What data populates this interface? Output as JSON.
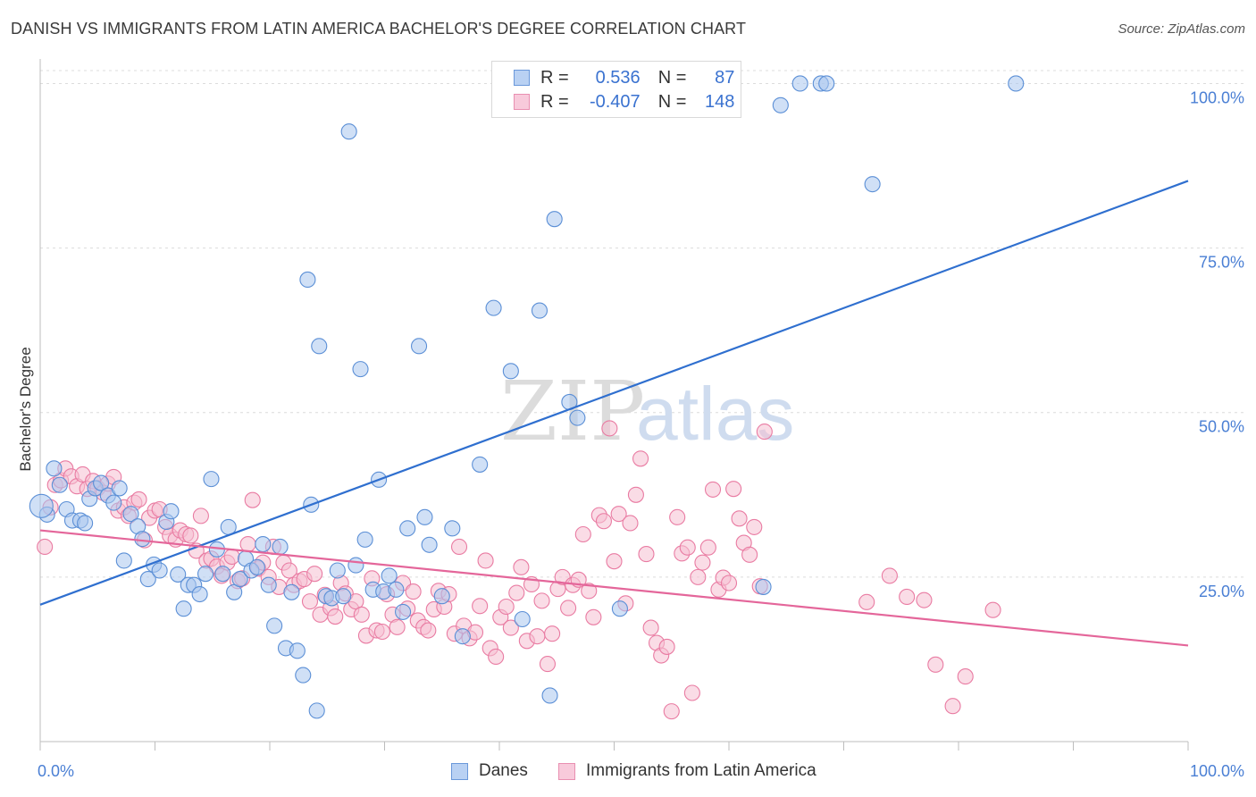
{
  "title": "DANISH VS IMMIGRANTS FROM LATIN AMERICA BACHELOR'S DEGREE CORRELATION CHART",
  "source": "Source: ZipAtlas.com",
  "watermark": "ZIPatlas",
  "colors": {
    "blue": "#5b8fd6",
    "blue_fill": "#a9c6ee",
    "blue_line": "#2f6fcf",
    "pink": "#e97ba2",
    "pink_fill": "#f6bfd1",
    "pink_line": "#e4669a",
    "tick": "#4a7fd4"
  },
  "legend": {
    "rows": [
      {
        "r_label": "R =",
        "r_value": "0.536",
        "n_label": "N =",
        "n_value": "87"
      },
      {
        "r_label": "R =",
        "r_value": "-0.407",
        "n_label": "N =",
        "n_value": "148"
      }
    ]
  },
  "bottom_legend": {
    "danes": "Danes",
    "immigrants": "Immigrants from Latin America"
  },
  "chart_data": {
    "type": "scatter",
    "ylabel": "Bachelor's Degree",
    "xlim": [
      0,
      100
    ],
    "ylim": [
      0,
      104
    ],
    "x_tick_labels": [
      "0.0%",
      "100.0%"
    ],
    "y_ticks": [
      25,
      50,
      75,
      100
    ],
    "y_tick_labels": [
      "25.0%",
      "50.0%",
      "75.0%",
      "100.0%"
    ],
    "grid": true,
    "series": [
      {
        "name": "Danes",
        "r": 0.536,
        "n": 87,
        "trend": [
          [
            0,
            20.8
          ],
          [
            100,
            85.2
          ]
        ],
        "points": [
          [
            0.6,
            34.5
          ],
          [
            1.2,
            41.5
          ],
          [
            1.7,
            39.0
          ],
          [
            2.3,
            35.3
          ],
          [
            2.8,
            33.6
          ],
          [
            3.5,
            33.6
          ],
          [
            3.9,
            33.2
          ],
          [
            4.3,
            36.9
          ],
          [
            4.8,
            38.5
          ],
          [
            5.3,
            39.3
          ],
          [
            5.9,
            37.4
          ],
          [
            6.4,
            36.3
          ],
          [
            6.9,
            38.5
          ],
          [
            7.3,
            27.5
          ],
          [
            7.9,
            34.6
          ],
          [
            8.5,
            32.7
          ],
          [
            8.9,
            30.8
          ],
          [
            9.4,
            24.7
          ],
          [
            9.9,
            26.9
          ],
          [
            10.4,
            26.0
          ],
          [
            11.0,
            33.4
          ],
          [
            11.4,
            35.0
          ],
          [
            12.0,
            25.4
          ],
          [
            12.5,
            20.2
          ],
          [
            12.9,
            23.8
          ],
          [
            13.4,
            23.8
          ],
          [
            13.9,
            22.4
          ],
          [
            14.4,
            25.5
          ],
          [
            14.9,
            39.9
          ],
          [
            15.4,
            29.2
          ],
          [
            15.9,
            25.5
          ],
          [
            16.4,
            32.6
          ],
          [
            16.9,
            22.7
          ],
          [
            17.4,
            24.7
          ],
          [
            17.9,
            27.8
          ],
          [
            18.4,
            26.0
          ],
          [
            18.9,
            26.5
          ],
          [
            19.4,
            30.0
          ],
          [
            19.9,
            23.8
          ],
          [
            20.4,
            17.6
          ],
          [
            20.9,
            29.6
          ],
          [
            21.4,
            14.2
          ],
          [
            21.9,
            22.7
          ],
          [
            22.4,
            13.8
          ],
          [
            22.9,
            10.1
          ],
          [
            23.3,
            70.2
          ],
          [
            23.6,
            36.0
          ],
          [
            24.1,
            4.7
          ],
          [
            24.3,
            60.1
          ],
          [
            24.9,
            22.1
          ],
          [
            25.4,
            21.8
          ],
          [
            25.9,
            26.0
          ],
          [
            26.4,
            22.1
          ],
          [
            26.9,
            92.7
          ],
          [
            27.5,
            26.8
          ],
          [
            27.9,
            56.6
          ],
          [
            28.3,
            30.7
          ],
          [
            29.0,
            23.1
          ],
          [
            29.5,
            39.8
          ],
          [
            29.9,
            22.8
          ],
          [
            30.4,
            25.2
          ],
          [
            31.0,
            23.1
          ],
          [
            31.6,
            19.7
          ],
          [
            32.0,
            32.4
          ],
          [
            33.0,
            60.1
          ],
          [
            33.5,
            34.1
          ],
          [
            33.9,
            29.9
          ],
          [
            35.0,
            22.1
          ],
          [
            35.9,
            32.4
          ],
          [
            36.8,
            16.0
          ],
          [
            38.3,
            42.1
          ],
          [
            39.5,
            65.9
          ],
          [
            41.0,
            56.3
          ],
          [
            42.0,
            18.6
          ],
          [
            43.5,
            65.5
          ],
          [
            44.4,
            7.0
          ],
          [
            44.8,
            79.4
          ],
          [
            46.1,
            51.6
          ],
          [
            46.8,
            49.2
          ],
          [
            50.5,
            20.2
          ],
          [
            63.0,
            23.5
          ],
          [
            64.5,
            96.7
          ],
          [
            66.2,
            100.0
          ],
          [
            68.0,
            100.0
          ],
          [
            68.5,
            100.0
          ],
          [
            72.5,
            84.7
          ],
          [
            85.0,
            100.0
          ]
        ]
      },
      {
        "name": "Immigrants from Latin America",
        "r": -0.407,
        "n": 148,
        "trend": [
          [
            0,
            32.1
          ],
          [
            100,
            14.6
          ]
        ],
        "points": [
          [
            0.4,
            29.6
          ],
          [
            0.9,
            35.6
          ],
          [
            1.3,
            39.0
          ],
          [
            1.8,
            39.7
          ],
          [
            2.2,
            41.5
          ],
          [
            2.7,
            40.3
          ],
          [
            3.2,
            38.8
          ],
          [
            3.7,
            40.6
          ],
          [
            4.1,
            38.4
          ],
          [
            4.6,
            39.6
          ],
          [
            5.0,
            38.5
          ],
          [
            5.5,
            37.8
          ],
          [
            5.9,
            39.2
          ],
          [
            6.4,
            40.2
          ],
          [
            6.8,
            35.1
          ],
          [
            7.3,
            35.6
          ],
          [
            7.7,
            34.3
          ],
          [
            8.2,
            36.3
          ],
          [
            8.6,
            36.8
          ],
          [
            9.1,
            30.6
          ],
          [
            9.5,
            34.0
          ],
          [
            10.0,
            35.1
          ],
          [
            10.4,
            35.3
          ],
          [
            10.9,
            32.6
          ],
          [
            11.3,
            31.3
          ],
          [
            11.8,
            30.7
          ],
          [
            12.2,
            32.1
          ],
          [
            12.7,
            31.5
          ],
          [
            13.1,
            31.3
          ],
          [
            13.6,
            29.0
          ],
          [
            14.0,
            34.3
          ],
          [
            14.5,
            27.5
          ],
          [
            14.9,
            27.8
          ],
          [
            15.4,
            26.6
          ],
          [
            15.8,
            25.2
          ],
          [
            16.3,
            27.2
          ],
          [
            16.7,
            28.1
          ],
          [
            17.2,
            24.4
          ],
          [
            17.6,
            24.8
          ],
          [
            18.1,
            30.0
          ],
          [
            18.5,
            36.7
          ],
          [
            19.0,
            26.3
          ],
          [
            19.4,
            27.2
          ],
          [
            19.9,
            25.0
          ],
          [
            20.3,
            29.6
          ],
          [
            20.8,
            23.5
          ],
          [
            21.2,
            27.2
          ],
          [
            21.7,
            26.0
          ],
          [
            22.1,
            23.8
          ],
          [
            22.6,
            24.4
          ],
          [
            23.0,
            24.7
          ],
          [
            23.5,
            21.3
          ],
          [
            23.9,
            25.5
          ],
          [
            24.4,
            19.3
          ],
          [
            24.8,
            22.3
          ],
          [
            25.3,
            20.3
          ],
          [
            25.7,
            19.0
          ],
          [
            26.2,
            24.1
          ],
          [
            26.6,
            22.5
          ],
          [
            27.1,
            20.1
          ],
          [
            27.5,
            21.3
          ],
          [
            28.0,
            19.3
          ],
          [
            28.4,
            16.1
          ],
          [
            28.9,
            24.8
          ],
          [
            29.3,
            16.9
          ],
          [
            29.8,
            16.7
          ],
          [
            30.2,
            22.4
          ],
          [
            30.7,
            19.3
          ],
          [
            31.1,
            17.4
          ],
          [
            31.6,
            24.1
          ],
          [
            32.0,
            20.2
          ],
          [
            32.5,
            22.8
          ],
          [
            32.9,
            18.4
          ],
          [
            33.4,
            17.4
          ],
          [
            33.8,
            16.9
          ],
          [
            34.3,
            20.1
          ],
          [
            34.7,
            22.9
          ],
          [
            35.2,
            20.5
          ],
          [
            35.6,
            22.4
          ],
          [
            36.1,
            16.4
          ],
          [
            36.5,
            29.6
          ],
          [
            36.9,
            17.6
          ],
          [
            37.4,
            15.7
          ],
          [
            37.9,
            16.6
          ],
          [
            38.3,
            20.6
          ],
          [
            38.8,
            27.5
          ],
          [
            39.2,
            14.2
          ],
          [
            39.7,
            12.9
          ],
          [
            40.1,
            18.9
          ],
          [
            40.6,
            20.5
          ],
          [
            41.0,
            17.3
          ],
          [
            41.5,
            22.6
          ],
          [
            41.9,
            26.5
          ],
          [
            42.4,
            15.3
          ],
          [
            42.8,
            23.9
          ],
          [
            43.3,
            16.0
          ],
          [
            43.7,
            21.4
          ],
          [
            44.2,
            11.8
          ],
          [
            44.6,
            16.4
          ],
          [
            45.1,
            23.2
          ],
          [
            45.5,
            25.0
          ],
          [
            46.0,
            20.3
          ],
          [
            46.4,
            23.8
          ],
          [
            46.9,
            24.6
          ],
          [
            47.3,
            31.5
          ],
          [
            47.8,
            22.9
          ],
          [
            48.2,
            18.9
          ],
          [
            48.7,
            34.4
          ],
          [
            49.1,
            33.5
          ],
          [
            49.6,
            47.6
          ],
          [
            50.0,
            27.4
          ],
          [
            50.4,
            34.6
          ],
          [
            51.0,
            21.0
          ],
          [
            51.4,
            33.2
          ],
          [
            51.9,
            37.5
          ],
          [
            52.3,
            43.0
          ],
          [
            52.8,
            28.5
          ],
          [
            53.2,
            17.3
          ],
          [
            53.7,
            15.0
          ],
          [
            54.1,
            13.1
          ],
          [
            54.6,
            14.4
          ],
          [
            55.0,
            4.6
          ],
          [
            55.5,
            34.1
          ],
          [
            55.9,
            28.6
          ],
          [
            56.4,
            29.5
          ],
          [
            56.8,
            7.4
          ],
          [
            57.3,
            25.0
          ],
          [
            57.7,
            27.2
          ],
          [
            58.2,
            29.5
          ],
          [
            58.6,
            38.3
          ],
          [
            59.1,
            23.1
          ],
          [
            59.5,
            24.9
          ],
          [
            60.0,
            24.1
          ],
          [
            60.4,
            38.4
          ],
          [
            60.9,
            33.9
          ],
          [
            61.3,
            30.2
          ],
          [
            61.8,
            28.4
          ],
          [
            62.2,
            32.6
          ],
          [
            62.7,
            23.6
          ],
          [
            63.1,
            47.1
          ],
          [
            72.0,
            21.2
          ],
          [
            74.0,
            25.2
          ],
          [
            75.5,
            22.0
          ],
          [
            77.0,
            21.5
          ],
          [
            78.0,
            11.7
          ],
          [
            79.5,
            5.4
          ],
          [
            80.6,
            9.9
          ],
          [
            83.0,
            20.0
          ]
        ]
      }
    ]
  }
}
